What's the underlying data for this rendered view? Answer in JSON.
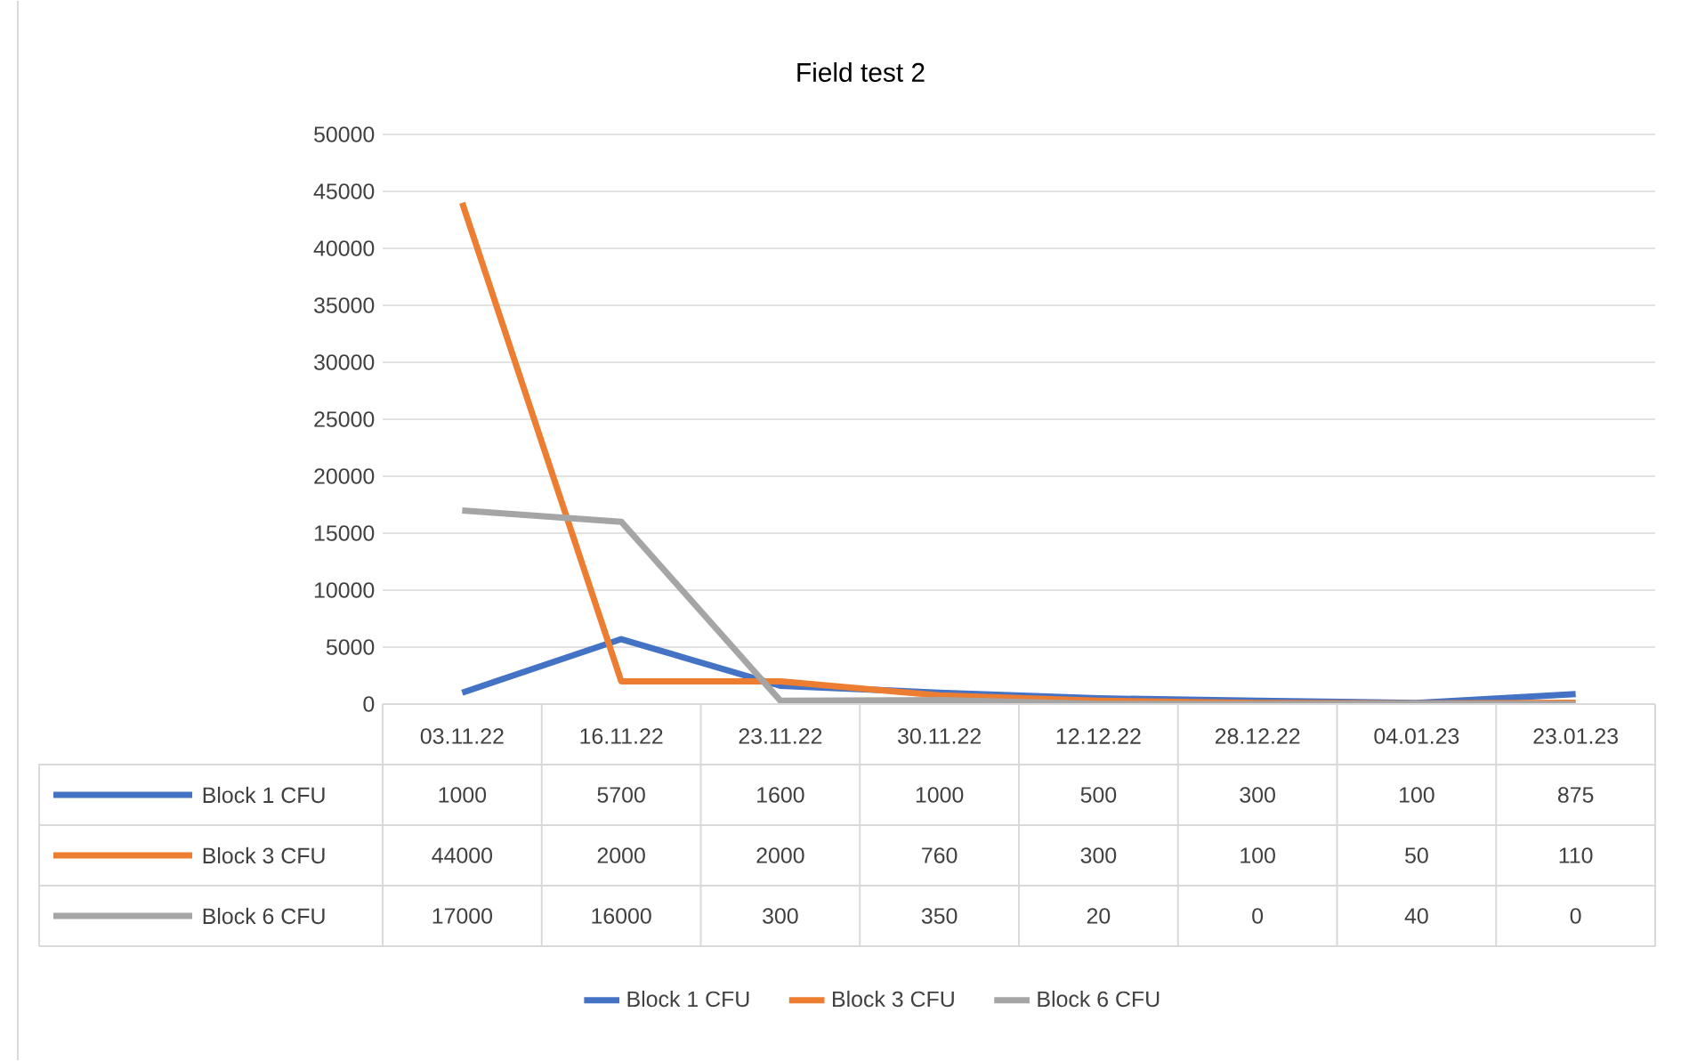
{
  "chart_data": {
    "type": "line",
    "title": "Field test 2",
    "categories": [
      "03.11.22",
      "16.11.22",
      "23.11.22",
      "30.11.22",
      "12.12.22",
      "28.12.22",
      "04.01.23",
      "23.01.23"
    ],
    "series": [
      {
        "name": "Block 1 CFU",
        "color": "#4472c4",
        "values": [
          1000,
          5700,
          1600,
          1000,
          500,
          300,
          100,
          875
        ]
      },
      {
        "name": "Block 3 CFU",
        "color": "#ed7d31",
        "values": [
          44000,
          2000,
          2000,
          760,
          300,
          100,
          50,
          110
        ]
      },
      {
        "name": "Block 6 CFU",
        "color": "#a5a5a5",
        "values": [
          17000,
          16000,
          300,
          350,
          20,
          0,
          40,
          0
        ]
      }
    ],
    "ylim": [
      0,
      50000
    ],
    "yticks": [
      0,
      5000,
      10000,
      15000,
      20000,
      25000,
      30000,
      35000,
      40000,
      45000,
      50000
    ],
    "grid": "y",
    "legend": "bottom",
    "data_labels": true
  }
}
